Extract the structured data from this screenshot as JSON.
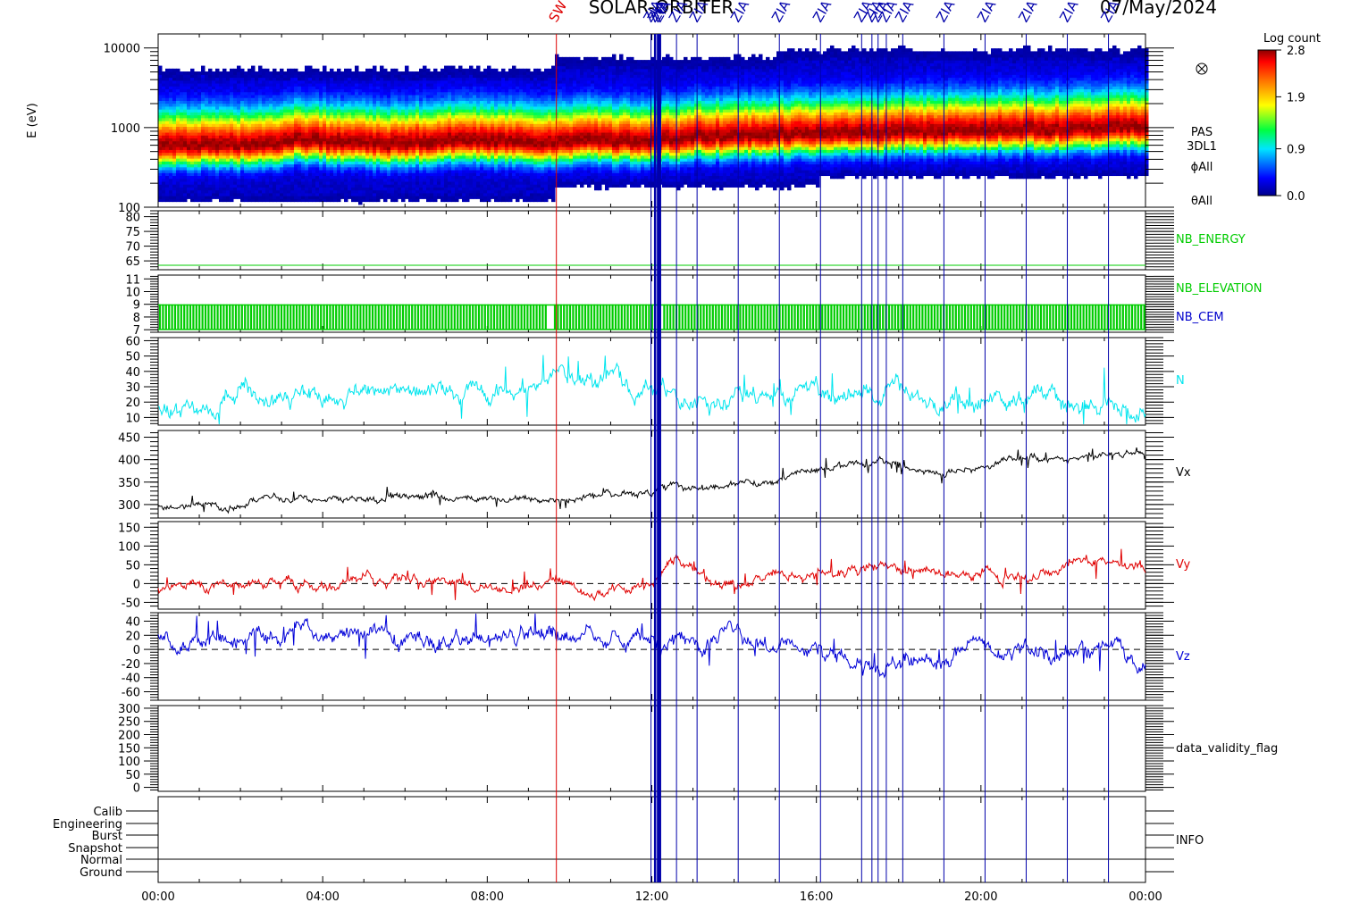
{
  "title": "SOLAR-ORBITER",
  "date_label": "07/May/2024",
  "colors": {
    "n": "#00e5ee",
    "vx": "#000000",
    "vy": "#e00000",
    "vz": "#0000d8",
    "nb_energy": "#00cc00",
    "nb_elevation": "#00cc00",
    "nb_cem": "#0000cc",
    "marker_blue": "#0000aa",
    "marker_red": "#dd0000"
  },
  "chart_data": [
    {
      "type": "heatmap",
      "ylabel": "E (eV)",
      "yscale": "log",
      "ylim": [
        100,
        15000
      ],
      "yticks": [
        "100",
        "1000",
        "10000"
      ],
      "side_labels": [
        "PAS",
        "3DL1",
        "ϕAll",
        "θAll"
      ],
      "colorbar": {
        "title": "Log count",
        "range": [
          0.0,
          2.8
        ],
        "ticks": [
          "0.0",
          "0.9",
          "1.9",
          "2.8"
        ]
      },
      "icon": "crossed-circle-icon",
      "peak_energy_ev_by_hour": [
        600,
        600,
        620,
        700,
        650,
        620,
        650,
        680,
        660,
        640,
        700,
        680,
        720,
        780,
        800,
        820,
        850,
        870,
        900,
        920,
        950,
        950,
        970,
        1000
      ]
    },
    {
      "type": "line",
      "name": "NB_ENERGY",
      "yticks": [
        "65",
        "70",
        "75",
        "80"
      ],
      "ylim": [
        62,
        82
      ],
      "constant_value": 63.5
    },
    {
      "type": "bar",
      "name": "NB_ELEVATION",
      "second_name": "NB_CEM",
      "yticks": [
        "7",
        "8",
        "9",
        "10",
        "11"
      ],
      "ylim": [
        6.8,
        11.3
      ],
      "band": [
        7,
        9
      ]
    },
    {
      "type": "line",
      "name": "N",
      "yticks": [
        "10",
        "20",
        "30",
        "40",
        "50",
        "60"
      ],
      "ylim": [
        5,
        62
      ],
      "x_hours": [
        0,
        1,
        2,
        3,
        4,
        5,
        6,
        7,
        8,
        9,
        9.7,
        10.5,
        11.5,
        12.6,
        13,
        14,
        15,
        16,
        17,
        18,
        19,
        20,
        21,
        22,
        23,
        24
      ],
      "values": [
        20,
        22,
        21,
        21,
        22,
        24,
        28,
        30,
        28,
        27,
        36,
        36,
        30,
        28,
        23,
        22,
        24,
        24,
        23,
        25,
        22,
        21,
        19,
        18,
        15,
        16
      ]
    },
    {
      "type": "line",
      "name": "Vx",
      "yticks": [
        "300",
        "350",
        "400",
        "450"
      ],
      "ylim": [
        270,
        465
      ],
      "x_hours": [
        0,
        2,
        2.6,
        4,
        6,
        8,
        10,
        12,
        12.6,
        13,
        14,
        15,
        16,
        17,
        18,
        19,
        20,
        21,
        22,
        23,
        24
      ],
      "values": [
        298,
        300,
        318,
        310,
        312,
        313,
        318,
        325,
        345,
        335,
        348,
        365,
        375,
        390,
        385,
        375,
        385,
        405,
        400,
        412,
        410
      ]
    },
    {
      "type": "line",
      "name": "Vy",
      "yticks": [
        "-50",
        "0",
        "50",
        "100",
        "150"
      ],
      "ylim": [
        -68,
        165
      ],
      "dashed_zero": true,
      "x_hours": [
        0,
        2,
        4,
        6,
        8,
        10,
        12,
        12.6,
        13.5,
        14,
        15,
        16,
        17,
        18,
        19,
        20,
        21,
        22,
        23,
        24
      ],
      "values": [
        -10,
        -5,
        5,
        2,
        -5,
        0,
        -5,
        60,
        10,
        5,
        35,
        25,
        30,
        35,
        30,
        25,
        30,
        40,
        80,
        20
      ]
    },
    {
      "type": "line",
      "name": "Vz",
      "yticks": [
        "-60",
        "-40",
        "-20",
        "0",
        "20",
        "40"
      ],
      "ylim": [
        -72,
        52
      ],
      "dashed_zero": true,
      "x_hours": [
        0,
        1,
        2,
        3,
        4,
        5,
        6,
        7,
        8,
        9,
        10,
        11,
        12,
        12.3,
        13,
        14,
        15,
        16,
        17,
        18,
        19,
        20,
        21,
        22,
        23,
        24
      ],
      "values": [
        20,
        20,
        18,
        20,
        15,
        12,
        8,
        10,
        18,
        20,
        10,
        10,
        20,
        5,
        15,
        18,
        0,
        -5,
        -25,
        -20,
        -20,
        10,
        0,
        -15,
        10,
        -20
      ]
    },
    {
      "type": "line",
      "name": "data_validity_flag",
      "yticks": [
        "0",
        "50",
        "100",
        "150",
        "200",
        "250",
        "300"
      ],
      "ylim": [
        -15,
        310
      ]
    },
    {
      "type": "table",
      "name": "INFO",
      "categories": [
        "Calib",
        "Engineering",
        "Burst",
        "Snapshot",
        "Normal",
        "Ground"
      ],
      "active_level": "Normal"
    }
  ],
  "x_axis": {
    "range_hours": [
      0,
      24
    ],
    "tick_labels": [
      "00:00",
      "04:00",
      "08:00",
      "12:00",
      "16:00",
      "20:00",
      "00:00"
    ]
  },
  "event_markers": [
    {
      "hour": 9.68,
      "label": "SW",
      "color": "red"
    },
    {
      "hour": 11.98,
      "label": "ZIA",
      "color": "blue"
    },
    {
      "hour": 12.08,
      "label": "ZIA",
      "color": "blue"
    },
    {
      "hour": 12.15,
      "label": "ZIA",
      "color": "blue"
    },
    {
      "hour": 12.2,
      "label": "ZIA",
      "color": "blue"
    },
    {
      "hour": 12.6,
      "label": "ZIA",
      "color": "blue"
    },
    {
      "hour": 13.1,
      "label": "ZIA",
      "color": "blue"
    },
    {
      "hour": 14.1,
      "label": "ZIA",
      "color": "blue"
    },
    {
      "hour": 15.1,
      "label": "ZIA",
      "color": "blue"
    },
    {
      "hour": 16.1,
      "label": "ZIA",
      "color": "blue"
    },
    {
      "hour": 17.1,
      "label": "ZIA",
      "color": "blue"
    },
    {
      "hour": 17.35,
      "label": "ZIA",
      "color": "blue"
    },
    {
      "hour": 17.5,
      "label": "ZIA",
      "color": "blue"
    },
    {
      "hour": 17.7,
      "label": "ZIA",
      "color": "blue"
    },
    {
      "hour": 18.1,
      "label": "ZIA",
      "color": "blue"
    },
    {
      "hour": 19.1,
      "label": "ZIA",
      "color": "blue"
    },
    {
      "hour": 20.1,
      "label": "ZIA",
      "color": "blue"
    },
    {
      "hour": 21.1,
      "label": "ZIA",
      "color": "blue"
    },
    {
      "hour": 22.1,
      "label": "ZIA",
      "color": "blue"
    },
    {
      "hour": 23.1,
      "label": "ZIA",
      "color": "blue"
    }
  ]
}
